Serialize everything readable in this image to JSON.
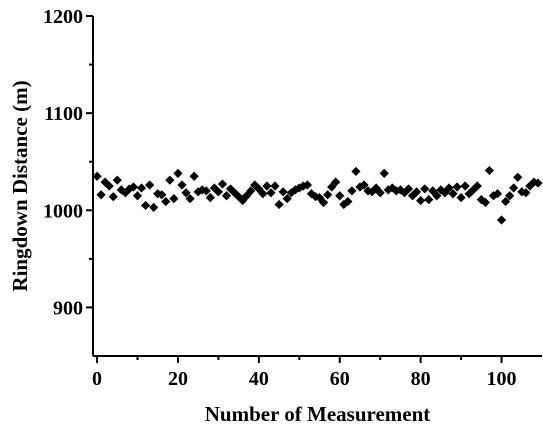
{
  "chart_data": {
    "type": "scatter",
    "xlabel": "Number of Measurement",
    "ylabel": "Ringdown Distance (m)",
    "xlim": [
      -1,
      110
    ],
    "ylim": [
      850,
      1200
    ],
    "xticks": [
      0,
      20,
      40,
      60,
      80,
      100
    ],
    "yticks": [
      900,
      1000,
      1100,
      1200
    ],
    "marker": "diamond",
    "marker_color": "#000000",
    "grid": false,
    "series": [
      {
        "x": [
          0,
          1,
          2,
          3,
          4,
          5,
          6,
          7,
          8,
          9,
          10,
          11,
          12,
          13,
          14,
          15,
          16,
          17,
          18,
          19,
          20,
          21,
          22,
          23,
          24,
          25,
          26,
          27,
          28,
          29,
          30,
          31,
          32,
          33,
          34,
          35,
          36,
          37,
          38,
          39,
          40,
          41,
          42,
          43,
          44,
          45,
          46,
          47,
          48,
          49,
          50,
          51,
          52,
          53,
          54,
          55,
          56,
          57,
          58,
          59,
          60,
          61,
          62,
          63,
          64,
          65,
          66,
          67,
          68,
          69,
          70,
          71,
          72,
          73,
          74,
          75,
          76,
          77,
          78,
          79,
          80,
          81,
          82,
          83,
          84,
          85,
          86,
          87,
          88,
          89,
          90,
          91,
          92,
          93,
          94,
          95,
          96,
          97,
          98,
          99,
          100,
          101,
          102,
          103,
          104,
          105,
          106,
          107,
          108,
          109
        ],
        "y": [
          1035,
          1016,
          1029,
          1025,
          1014,
          1031,
          1021,
          1018,
          1022,
          1024,
          1015,
          1023,
          1005,
          1026,
          1003,
          1017,
          1016,
          1009,
          1031,
          1012,
          1038,
          1026,
          1018,
          1012,
          1035,
          1019,
          1021,
          1020,
          1013,
          1023,
          1019,
          1027,
          1015,
          1022,
          1018,
          1014,
          1010,
          1015,
          1020,
          1026,
          1022,
          1017,
          1025,
          1018,
          1025,
          1006,
          1019,
          1012,
          1018,
          1021,
          1023,
          1025,
          1026,
          1017,
          1014,
          1013,
          1008,
          1016,
          1024,
          1029,
          1015,
          1006,
          1009,
          1020,
          1040,
          1024,
          1026,
          1020,
          1019,
          1023,
          1018,
          1038,
          1021,
          1023,
          1020,
          1021,
          1018,
          1022,
          1015,
          1019,
          1010,
          1022,
          1011,
          1020,
          1015,
          1021,
          1018,
          1023,
          1017,
          1024,
          1013,
          1025,
          1017,
          1021,
          1025,
          1011,
          1008,
          1041,
          1015,
          1017,
          990,
          1009,
          1015,
          1023,
          1034,
          1019,
          1018,
          1025,
          1029,
          1028
        ]
      }
    ]
  }
}
